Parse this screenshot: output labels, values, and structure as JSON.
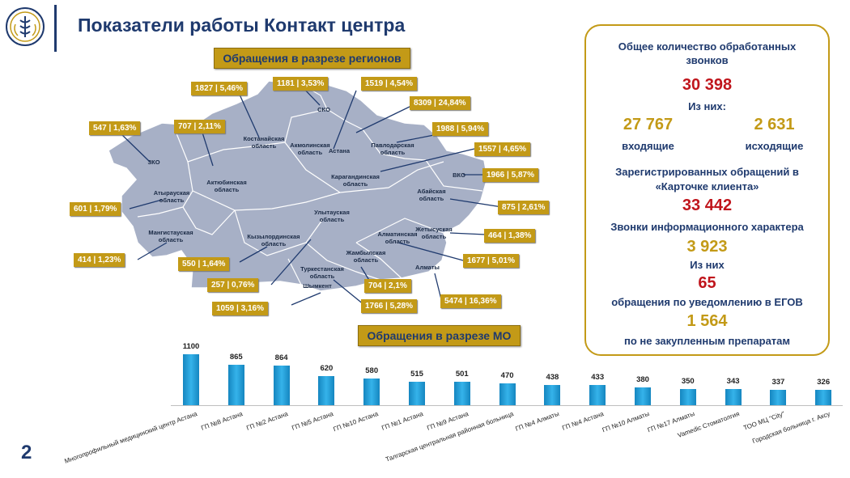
{
  "header": {
    "title": "Показатели работы Контакт центра",
    "page_number": "2"
  },
  "ribbons": {
    "regions": "Обращения в разрезе регионов",
    "mo": "Обращения в разрезе МО"
  },
  "regions": [
    {
      "label": "СКО"
    },
    {
      "label": "Костанайская\nобласть"
    },
    {
      "label": "Акмолинская\nобласть"
    },
    {
      "label": "Астана"
    },
    {
      "label": "Павлодарская\nобласть"
    },
    {
      "label": "ЗКО"
    },
    {
      "label": "Актюбинская\nобласть"
    },
    {
      "label": "Атырауская\nобласть"
    },
    {
      "label": "Карагандинская\nобласть"
    },
    {
      "label": "ВКО"
    },
    {
      "label": "Абайская\nобласть"
    },
    {
      "label": "Улытауская\nобласть"
    },
    {
      "label": "Мангистауская\nобласть"
    },
    {
      "label": "Кызылординская\nобласть"
    },
    {
      "label": "Алматинская\nобласть"
    },
    {
      "label": "Жетысуская\nобласть"
    },
    {
      "label": "Жамбылская\nобласть"
    },
    {
      "label": "Туркестанская\nобласть"
    },
    {
      "label": "Шымкент"
    },
    {
      "label": "Алматы"
    }
  ],
  "tags": [
    "1827 | 5,46%",
    "1181 | 3,53%",
    "1519 | 4,54%",
    "8309 | 24,84%",
    "547 | 1,63%",
    "707 | 2,11%",
    "1988 | 5,94%",
    "1557 | 4,65%",
    "1966 | 5,87%",
    "601 | 1,79%",
    "875 | 2,61%",
    "464 | 1,38%",
    "414 | 1,23%",
    "550 | 1,64%",
    "1677 | 5,01%",
    "257 | 0,76%",
    "704 | 2,1%",
    "1059 | 3,16%",
    "1766 | 5,28%",
    "5474 | 16,36%"
  ],
  "stats": {
    "total_label": "Общее количество обработанных\nзвонков",
    "total_value": "30 398",
    "of_them": "Из них:",
    "incoming_value": "27 767",
    "outgoing_value": "2 631",
    "incoming_label": "входящие",
    "outgoing_label": "исходящие",
    "registered_label": "Зарегистрированных обращений в\n«Карточке клиента»",
    "registered_value": "33 442",
    "info_label": "Звонки информационного характера",
    "info_value": "3 923",
    "of_them2": "Из них",
    "egov_value": "65",
    "egov_label": "обращения по уведомлению в ЕГОВ",
    "drugs_value": "1 564",
    "drugs_label": "по не закупленным препаратам"
  },
  "colors": {
    "navy": "#1f3a6e",
    "gold": "#c39a17",
    "red": "#c0151c",
    "bar": "#1e9bd7",
    "map": "#a7b0c6"
  },
  "chart_data": {
    "type": "bar",
    "categories": [
      "Многопрофильный медицинский центр Астана",
      "ГП №8 Астана",
      "ГП №2 Астана",
      "ГП №5 Астана",
      "ГП №10 Астана",
      "ГП №1 Астана",
      "ГП №9 Астана",
      "Талгарская центральная районная больница",
      "ГП №4 Алматы",
      "ГП №4 Астана",
      "ГП №10 Алматы",
      "ГП №17 Алматы",
      "Vamedic Стоматолгия",
      "ТОО МЦ \"City\"",
      "Городская больница г. Аксу"
    ],
    "values": [
      1100,
      865,
      864,
      620,
      580,
      515,
      501,
      470,
      438,
      433,
      380,
      350,
      343,
      337,
      326
    ],
    "title": "Обращения в разрезе МО"
  }
}
